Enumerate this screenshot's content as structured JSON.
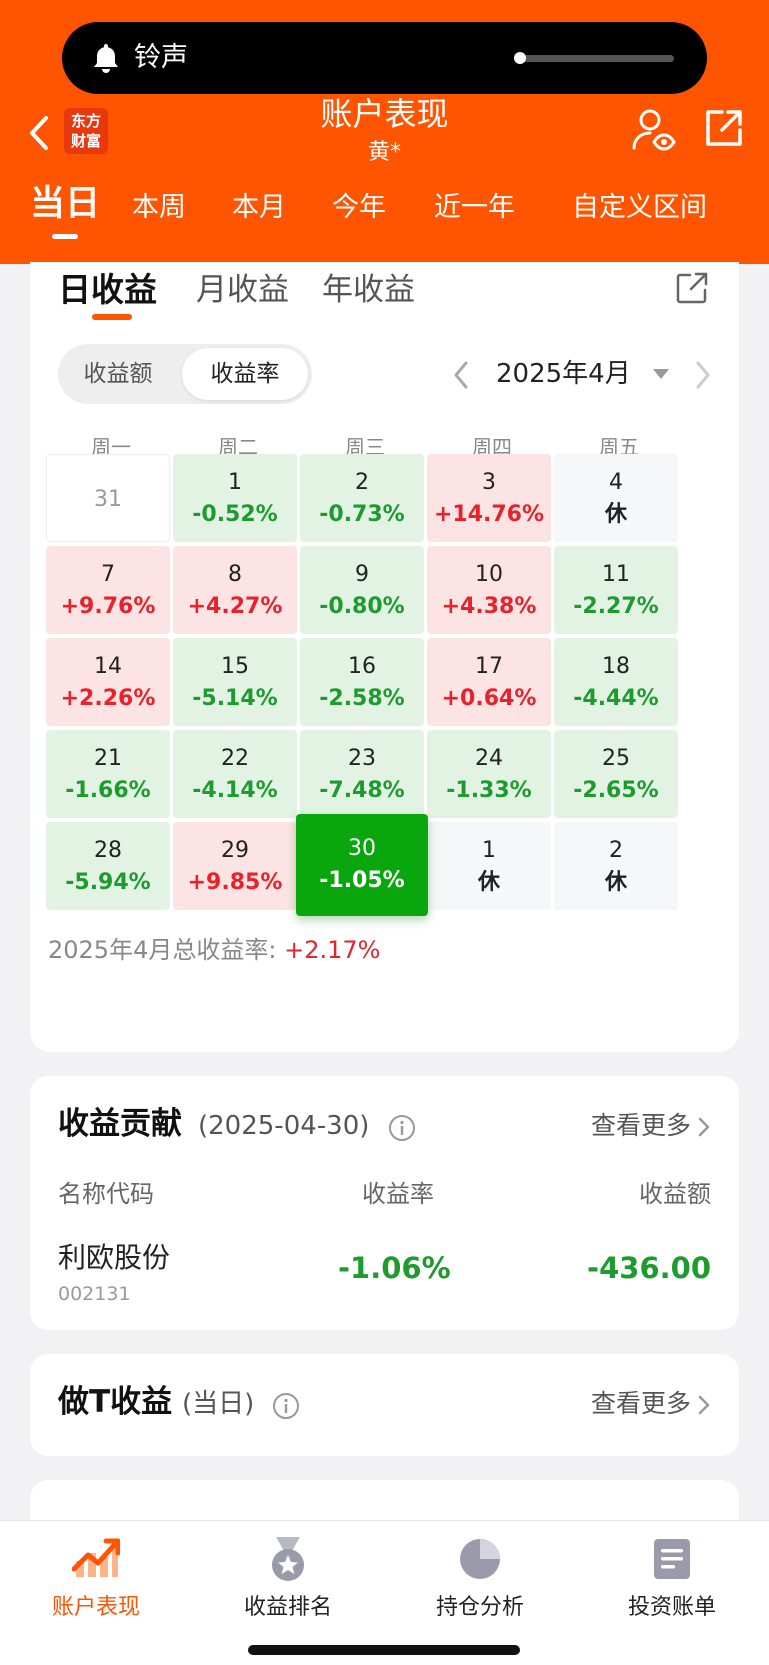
{
  "status": {
    "ringer_label": "铃声"
  },
  "header": {
    "logo_text_line1": "东方",
    "logo_text_line2": "财富",
    "title": "账户表现",
    "subtitle": "黄*",
    "accent_color": "#ff5500",
    "period_tabs": [
      {
        "label": "当日",
        "active": true
      },
      {
        "label": "本周"
      },
      {
        "label": "本月"
      },
      {
        "label": "今年"
      },
      {
        "label": "近一年"
      },
      {
        "label": "自定义区间"
      }
    ]
  },
  "calendar": {
    "gain_tabs": [
      {
        "label": "日收益",
        "active": true
      },
      {
        "label": "月收益"
      },
      {
        "label": "年收益"
      }
    ],
    "toggle": {
      "amount_label": "收益额",
      "rate_label": "收益率",
      "selected": "收益率"
    },
    "month_label": "2025年4月",
    "weekdays": [
      "周一",
      "周二",
      "周三",
      "周四",
      "周五"
    ],
    "weeks": [
      [
        {
          "day": "31",
          "type": "blank",
          "value": ""
        },
        {
          "day": "1",
          "type": "neg",
          "value": "-0.52%"
        },
        {
          "day": "2",
          "type": "neg",
          "value": "-0.73%"
        },
        {
          "day": "3",
          "type": "pos",
          "value": "+14.76%"
        },
        {
          "day": "4",
          "type": "rest",
          "value": "休"
        }
      ],
      [
        {
          "day": "7",
          "type": "pos",
          "value": "+9.76%"
        },
        {
          "day": "8",
          "type": "pos",
          "value": "+4.27%"
        },
        {
          "day": "9",
          "type": "neg",
          "value": "-0.80%"
        },
        {
          "day": "10",
          "type": "pos",
          "value": "+4.38%"
        },
        {
          "day": "11",
          "type": "neg",
          "value": "-2.27%"
        }
      ],
      [
        {
          "day": "14",
          "type": "pos",
          "value": "+2.26%"
        },
        {
          "day": "15",
          "type": "neg",
          "value": "-5.14%"
        },
        {
          "day": "16",
          "type": "neg",
          "value": "-2.58%"
        },
        {
          "day": "17",
          "type": "pos",
          "value": "+0.64%"
        },
        {
          "day": "18",
          "type": "neg",
          "value": "-4.44%"
        }
      ],
      [
        {
          "day": "21",
          "type": "neg",
          "value": "-1.66%"
        },
        {
          "day": "22",
          "type": "neg",
          "value": "-4.14%"
        },
        {
          "day": "23",
          "type": "neg",
          "value": "-7.48%"
        },
        {
          "day": "24",
          "type": "neg",
          "value": "-1.33%"
        },
        {
          "day": "25",
          "type": "neg",
          "value": "-2.65%"
        }
      ],
      [
        {
          "day": "28",
          "type": "neg",
          "value": "-5.94%"
        },
        {
          "day": "29",
          "type": "pos",
          "value": "+9.85%"
        },
        {
          "day": "30",
          "type": "sel",
          "value": "-1.05%"
        },
        {
          "day": "1",
          "type": "rest",
          "value": "休"
        },
        {
          "day": "2",
          "type": "rest",
          "value": "休"
        }
      ]
    ],
    "total_label": "2025年4月总收益率:",
    "total_value": "+2.17%",
    "colors": {
      "gain": "#e8222a",
      "loss": "#1d9b2e",
      "selected": "#0aa60e"
    }
  },
  "contribution": {
    "title": "收益贡献",
    "date": "(2025-04-30)",
    "more_label": "查看更多",
    "columns": {
      "name": "名称代码",
      "rate": "收益率",
      "amount": "收益额"
    },
    "rows": [
      {
        "name": "利欧股份",
        "code": "002131",
        "rate": "-1.06%",
        "amount": "-436.00"
      }
    ]
  },
  "t_gain": {
    "title": "做T收益",
    "sub": "(当日)",
    "more_label": "查看更多"
  },
  "bottom_nav": [
    {
      "label": "账户表现",
      "icon": "chart-trend-icon",
      "active": true
    },
    {
      "label": "收益排名",
      "icon": "medal-icon"
    },
    {
      "label": "持仓分析",
      "icon": "pie-chart-icon"
    },
    {
      "label": "投资账单",
      "icon": "bill-icon"
    }
  ]
}
